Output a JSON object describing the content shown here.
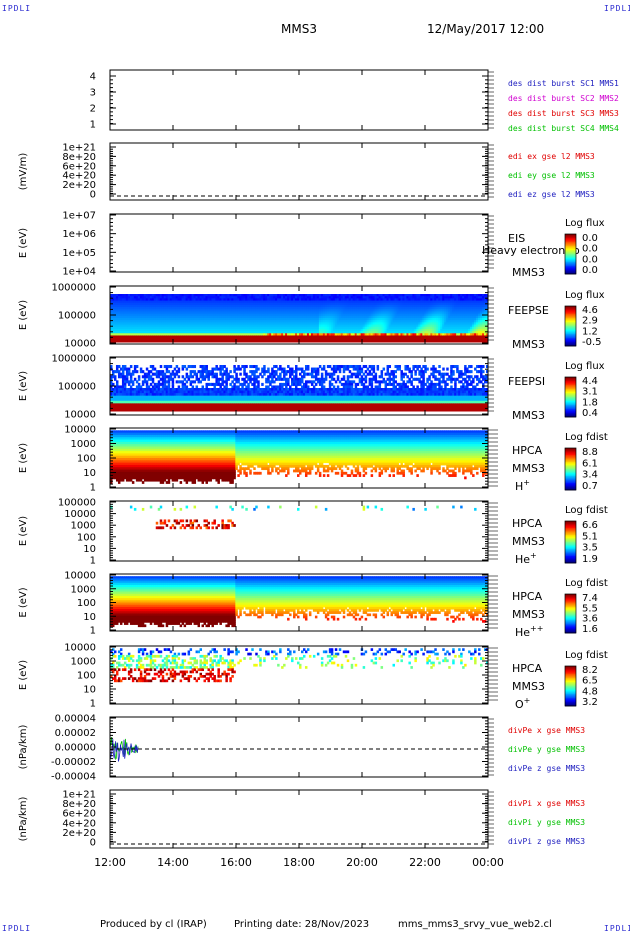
{
  "header": {
    "corner_tl": "IPDLI",
    "corner_tr": "IPDLI",
    "corner_bl": "IPDLI",
    "corner_br": "IPDLI",
    "mission": "MMS3",
    "datetime": "12/May/2017 12:00"
  },
  "footer": {
    "produced_by": "Produced by cl (IRAP)",
    "printing_date": "Printing date: 28/Nov/2023",
    "filename": "mms_mms3_srvy_vue_web2.cl"
  },
  "chart_data": {
    "type": "multi-panel time series",
    "x_ticks": [
      "12:00",
      "14:00",
      "16:00",
      "18:00",
      "20:00",
      "22:00",
      "00:00"
    ],
    "panels": [
      {
        "id": "dist",
        "kind": "line",
        "ylabel": "",
        "yticks": [
          "4",
          "3",
          "2",
          "1"
        ],
        "legend": [
          {
            "text": "des dist burst SC1 MMS1",
            "color": "#2020c0"
          },
          {
            "text": "des dist burst SC2 MMS2",
            "color": "#d000d0"
          },
          {
            "text": "des dist burst SC3 MMS3",
            "color": "#e00000"
          },
          {
            "text": "des dist burst SC4 MMS4",
            "color": "#00c000"
          }
        ]
      },
      {
        "id": "edi",
        "kind": "line",
        "ylabel": "(mV/m)",
        "yticks": [
          "1e+21",
          "8e+20",
          "6e+20",
          "4e+20",
          "2e+20",
          "0"
        ],
        "legend": [
          {
            "text": "edi ex gse l2 MMS3",
            "color": "#e00000"
          },
          {
            "text": "edi ey gse l2 MMS3",
            "color": "#00c000"
          },
          {
            "text": "edi ez gse l2 MMS3",
            "color": "#2020c0"
          }
        ]
      },
      {
        "id": "eis",
        "kind": "spectrogram",
        "ylabel": "E (eV)",
        "yticks": [
          "1e+07",
          "1e+06",
          "1e+05",
          "1e+04"
        ],
        "label_main": "EIS",
        "label_sc": "MMS3",
        "label_overlay": "Heavy electron to",
        "cbar_title": "Log flux",
        "cbar_ticks": [
          "0.0",
          "0.0",
          "0.0",
          "0.0"
        ]
      },
      {
        "id": "feepse",
        "kind": "spectrogram",
        "ylabel": "E (eV)",
        "yticks": [
          "1000000",
          "100000",
          "10000"
        ],
        "label_main": "FEEPSE",
        "label_sc": "MMS3",
        "cbar_title": "Log flux",
        "cbar_ticks": [
          "4.6",
          "2.9",
          "1.2",
          "-0.5"
        ]
      },
      {
        "id": "feepsi",
        "kind": "spectrogram",
        "ylabel": "E (eV)",
        "yticks": [
          "1000000",
          "100000",
          "10000"
        ],
        "label_main": "FEEPSI",
        "label_sc": "MMS3",
        "cbar_title": "Log flux",
        "cbar_ticks": [
          "4.4",
          "3.1",
          "1.8",
          "0.4"
        ]
      },
      {
        "id": "hpca_h",
        "kind": "spectrogram",
        "ylabel": "E (eV)",
        "yticks": [
          "10000",
          "1000",
          "100",
          "10",
          "1"
        ],
        "label_main": "HPCA",
        "label_sc": "MMS3",
        "species": "H",
        "charge": "+",
        "cbar_title": "Log fdist",
        "cbar_ticks": [
          "8.8",
          "6.1",
          "3.4",
          "0.7"
        ]
      },
      {
        "id": "hpca_he",
        "kind": "spectrogram",
        "ylabel": "E (eV)",
        "yticks": [
          "100000",
          "10000",
          "1000",
          "100",
          "10",
          "1"
        ],
        "label_main": "HPCA",
        "label_sc": "MMS3",
        "species": "He",
        "charge": "+",
        "cbar_title": "Log fdist",
        "cbar_ticks": [
          "6.6",
          "5.1",
          "3.5",
          "1.9"
        ]
      },
      {
        "id": "hpca_hepp",
        "kind": "spectrogram",
        "ylabel": "E (eV)",
        "yticks": [
          "10000",
          "1000",
          "100",
          "10",
          "1"
        ],
        "label_main": "HPCA",
        "label_sc": "MMS3",
        "species": "He",
        "charge": "++",
        "cbar_title": "Log fdist",
        "cbar_ticks": [
          "7.4",
          "5.5",
          "3.6",
          "1.6"
        ]
      },
      {
        "id": "hpca_o",
        "kind": "spectrogram",
        "ylabel": "E (eV)",
        "yticks": [
          "10000",
          "1000",
          "100",
          "10",
          "1"
        ],
        "label_main": "HPCA",
        "label_sc": "MMS3",
        "species": "O",
        "charge": "+",
        "cbar_title": "Log fdist",
        "cbar_ticks": [
          "8.2",
          "6.5",
          "4.8",
          "3.2"
        ]
      },
      {
        "id": "divpe",
        "kind": "line",
        "ylabel": "(nPa/km)",
        "yticks": [
          "0.00004",
          "0.00002",
          "0.00000",
          "-0.00002",
          "-0.00004"
        ],
        "legend": [
          {
            "text": "divPe x gse MMS3",
            "color": "#e00000"
          },
          {
            "text": "divPe y gse MMS3",
            "color": "#00c000"
          },
          {
            "text": "divPe z gse MMS3",
            "color": "#2020c0"
          }
        ]
      },
      {
        "id": "divpi",
        "kind": "line",
        "ylabel": "(nPa/km)",
        "yticks": [
          "1e+21",
          "8e+20",
          "6e+20",
          "4e+20",
          "2e+20",
          "0"
        ],
        "legend": [
          {
            "text": "divPi x gse MMS3",
            "color": "#e00000"
          },
          {
            "text": "divPi y gse MMS3",
            "color": "#00c000"
          },
          {
            "text": "divPi z gse MMS3",
            "color": "#2020c0"
          }
        ]
      }
    ]
  }
}
